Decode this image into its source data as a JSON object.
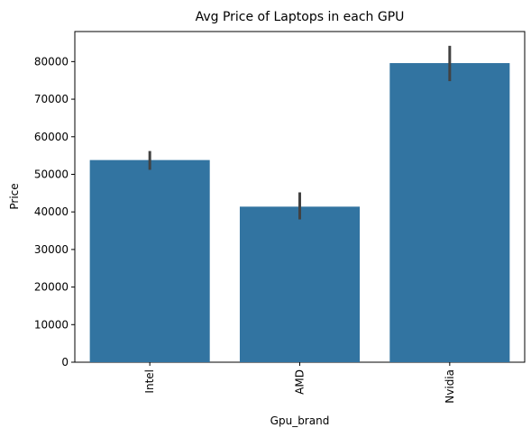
{
  "chart_data": {
    "type": "bar",
    "title": "Avg Price of Laptops in each GPU",
    "xlabel": "Gpu_brand",
    "ylabel": "Price",
    "categories": [
      "Intel",
      "AMD",
      "Nvidia"
    ],
    "values": [
      53800,
      41400,
      79600
    ],
    "error_bars": [
      {
        "low": 51200,
        "high": 56200
      },
      {
        "low": 38000,
        "high": 45200
      },
      {
        "low": 74800,
        "high": 84200
      }
    ],
    "ylim": [
      0,
      88000
    ],
    "yticks": [
      0,
      10000,
      20000,
      30000,
      40000,
      50000,
      60000,
      70000,
      80000
    ],
    "ytick_labels": [
      "0",
      "10000",
      "20000",
      "30000",
      "40000",
      "50000",
      "60000",
      "70000",
      "80000"
    ],
    "xtick_rotation": "vertical",
    "grid": false,
    "bar_color": "#3274a1",
    "error_color": "#424242"
  }
}
